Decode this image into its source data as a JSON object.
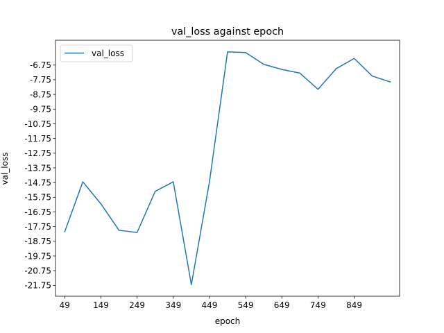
{
  "chart_data": {
    "type": "line",
    "title": "val_loss against epoch",
    "xlabel": "epoch",
    "ylabel": "val_loss",
    "x": [
      49,
      99,
      149,
      199,
      249,
      299,
      349,
      399,
      449,
      499,
      549,
      599,
      649,
      699,
      749,
      799,
      849,
      899,
      949
    ],
    "series": [
      {
        "name": "val_loss",
        "color": "#1f77b4",
        "values": [
          -18.1,
          -14.7,
          -16.2,
          -18.0,
          -18.15,
          -15.35,
          -14.7,
          -21.7,
          -14.7,
          -5.85,
          -5.9,
          -6.7,
          -7.05,
          -7.3,
          -8.4,
          -7.0,
          -6.3,
          -7.5,
          -7.9
        ]
      }
    ],
    "xticks": [
      49,
      149,
      249,
      349,
      449,
      549,
      649,
      749,
      849
    ],
    "yticks": [
      -6.75,
      -7.75,
      -8.75,
      -9.75,
      -10.75,
      -11.75,
      -12.75,
      -13.75,
      -14.75,
      -15.75,
      -16.75,
      -17.75,
      -18.75,
      -19.75,
      -20.75,
      -21.75
    ],
    "xlim": [
      23.5,
      974.5
    ],
    "ylim": [
      -22.49,
      -5.06
    ],
    "grid": false,
    "legend": "top-left"
  }
}
